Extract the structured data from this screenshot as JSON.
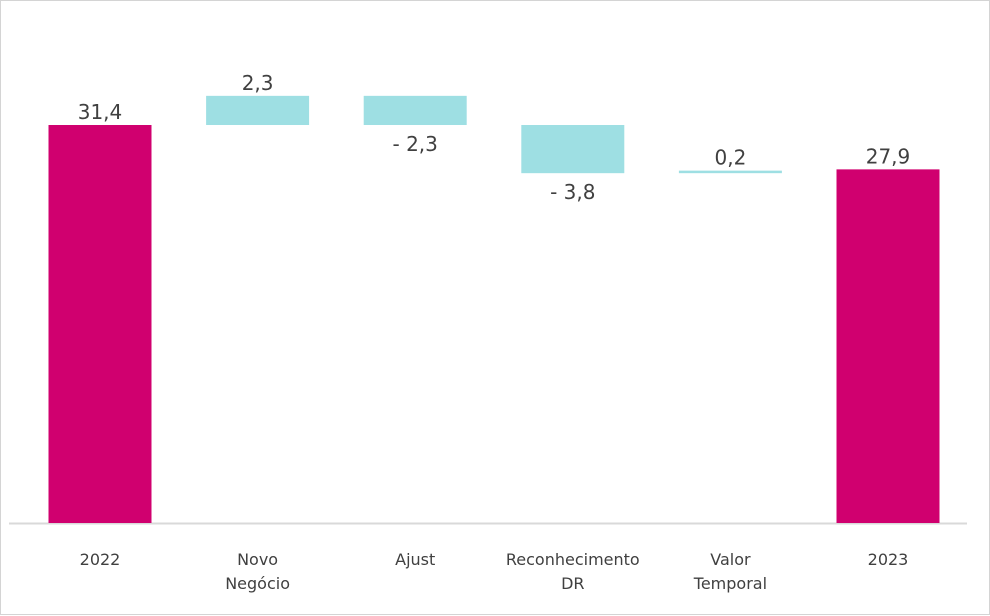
{
  "chart_data": {
    "type": "waterfall",
    "title": "",
    "xlabel": "",
    "ylabel": "",
    "ylim": [
      0,
      34.5
    ],
    "grid": false,
    "legend": "none",
    "categories": [
      [
        "2022"
      ],
      [
        "Novo",
        "Negócio"
      ],
      [
        "Ajust"
      ],
      [
        "Reconhecimento",
        "DR"
      ],
      [
        "Valor",
        "Temporal"
      ],
      [
        "2023"
      ]
    ],
    "values": [
      31.4,
      2.3,
      -2.3,
      -3.8,
      0.2,
      27.9
    ],
    "bar_kind": [
      "total",
      "delta",
      "delta",
      "delta",
      "delta",
      "total"
    ],
    "data_labels": [
      "31,4",
      "2,3",
      "- 2,3",
      "- 3,8",
      "0,2",
      "27,9"
    ],
    "colors": {
      "total": "#d0006f",
      "delta": "#9edfe3",
      "axis": "#d9d9d9",
      "text": "#404040"
    }
  }
}
